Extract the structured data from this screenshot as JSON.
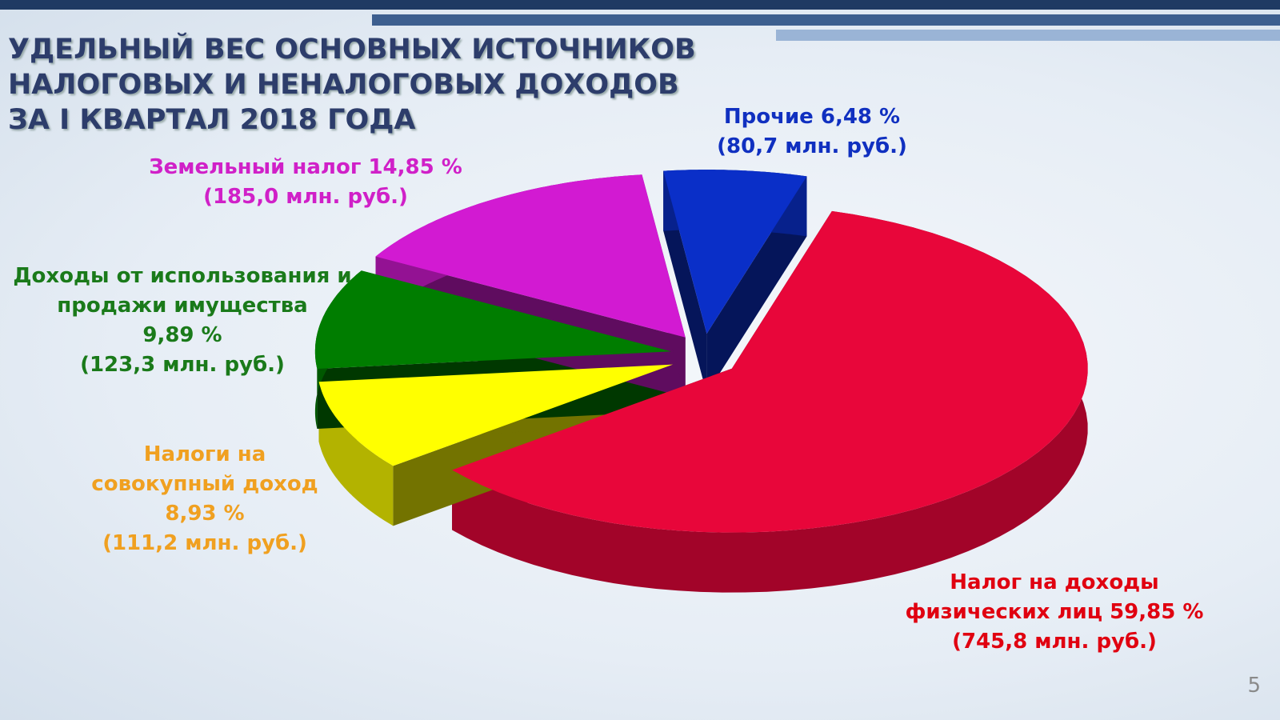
{
  "chart_data": {
    "type": "pie3d",
    "title_lines": [
      "УДЕЛЬНЫЙ ВЕС ОСНОВНЫХ ИСТОЧНИКОВ",
      "НАЛОГОВЫХ И НЕНАЛОГОВЫХ ДОХОДОВ",
      "ЗА I КВАРТАЛ 2018 ГОДА"
    ],
    "categories": [
      "Прочие",
      "Налог на доходы физических лиц",
      "Налоги на совокупный доход",
      "Доходы от использования и продажи имущества",
      "Земельный налог"
    ],
    "values": [
      6.48,
      59.85,
      8.93,
      9.89,
      14.85
    ],
    "value_labels": [
      "6,48 %",
      "59,85 %",
      "8,93 %",
      "9,89 %",
      "14,85 %"
    ],
    "amount_labels": [
      "(80,7 млн. руб.)",
      "(745,8 млн. руб.)",
      "(111,2 млн. руб.)",
      "(123,3 млн. руб.)",
      "(185,0 млн. руб.)"
    ],
    "colors": [
      "#0a2fc8",
      "#e8063a",
      "#ffff00",
      "#007d00",
      "#d21ad2"
    ],
    "label_colors": [
      "#1030c0",
      "#e00010",
      "#f0a020",
      "#1a7a1a",
      "#d020c8"
    ]
  },
  "slide_number": 5
}
